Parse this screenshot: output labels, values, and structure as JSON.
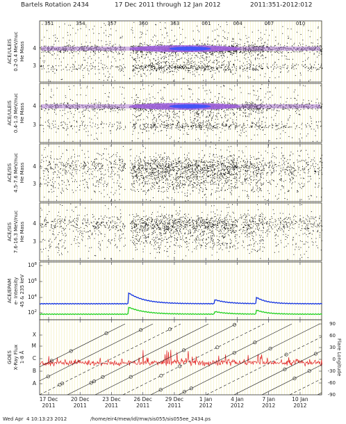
{
  "title": {
    "rotation": "Bartels Rotation 2434",
    "range": "17 Dec 2011 through 12 Jan 2012",
    "doy_range": "2011:351-2012:012"
  },
  "top_day_labels": [
    "351",
    "354",
    "357",
    "360",
    "363",
    "001",
    "004",
    "007",
    "010"
  ],
  "date_labels": [
    {
      "day": "17 Dec",
      "year": "2011"
    },
    {
      "day": "20 Dec",
      "year": "2011"
    },
    {
      "day": "23 Dec",
      "year": "2011"
    },
    {
      "day": "26 Dec",
      "year": "2011"
    },
    {
      "day": "29 Dec",
      "year": "2011"
    },
    {
      "day": "1 Jan",
      "year": "2012"
    },
    {
      "day": "4 Jan",
      "year": "2012"
    },
    {
      "day": "7 Jan",
      "year": "2012"
    },
    {
      "day": "10 Jan",
      "year": "2012"
    }
  ],
  "panels": [
    {
      "labels": [
        "ACE/ULEIS",
        "0.2-0.4 MeV/nuc",
        "He Mass"
      ],
      "yticks": [
        "4",
        "3"
      ]
    },
    {
      "labels": [
        "ACE/ULEIS",
        "0.4-1.0 MeV/nuc",
        "He Mass"
      ],
      "yticks": [
        "4",
        "3"
      ]
    },
    {
      "labels": [
        "ACE/SIS",
        "4.5-7.6 MeV/nuc",
        "He Mass"
      ],
      "yticks": [
        "4",
        "3"
      ]
    },
    {
      "labels": [
        "ACE/SIS",
        "7.6-16.3 MeV/nuc",
        "He Mass"
      ],
      "yticks": [
        "4",
        "3"
      ]
    },
    {
      "labels": [
        "ACE/EPAM",
        "e- Intensity",
        "45 & 235 keV"
      ],
      "yticks": [
        {
          "base": "10",
          "exp": "8"
        },
        {
          "base": "10",
          "exp": "6"
        },
        {
          "base": "10",
          "exp": "4"
        },
        {
          "base": "10",
          "exp": "2"
        }
      ]
    },
    {
      "labels": [
        "GOES",
        "X-Ray Flux",
        "1-8 Å"
      ],
      "yticks": [
        "X",
        "M",
        "C",
        "B",
        "A"
      ],
      "right_label": "Flare Longitude",
      "right_ticks": [
        "90",
        "60",
        "30",
        "0",
        "-30",
        "-60",
        "-90"
      ]
    }
  ],
  "footer": {
    "timestamp": "Wed Apr  4 10:13:23 2012",
    "path": "/home/eir4/mew/idl/mw/sis055/sis055ee_2434.ps"
  }
}
